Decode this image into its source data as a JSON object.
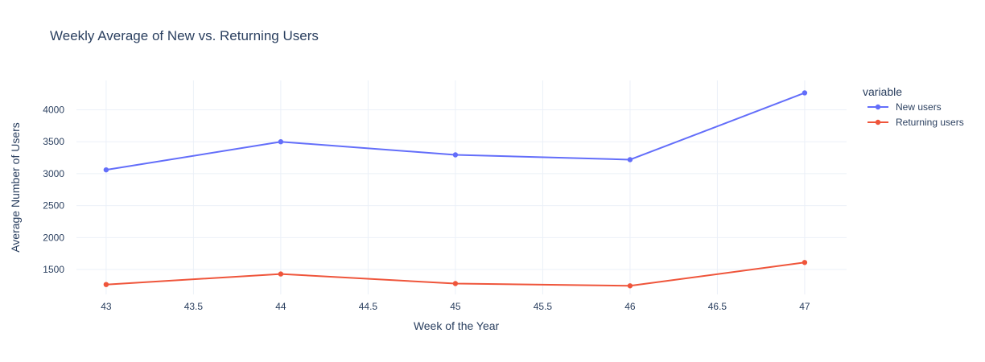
{
  "chart_data": {
    "type": "line",
    "title": "Weekly Average of New vs. Returning Users",
    "xlabel": "Week of the Year",
    "ylabel": "Average Number of Users",
    "x": [
      43,
      44,
      45,
      46,
      47
    ],
    "x_ticks": [
      "43",
      "43.5",
      "44",
      "44.5",
      "45",
      "45.5",
      "46",
      "46.5",
      "47"
    ],
    "y_ticks": [
      "1500",
      "2000",
      "2500",
      "3000",
      "3500",
      "4000"
    ],
    "xlim": [
      42.83,
      47.24
    ],
    "ylim": [
      1110,
      4460
    ],
    "grid": true,
    "legend": {
      "title": "variable",
      "position": "top-right"
    },
    "series": [
      {
        "name": "New users",
        "color": "#636efa",
        "values": [
          3060,
          3500,
          3295,
          3220,
          4265
        ]
      },
      {
        "name": "Returning users",
        "color": "#ef553b",
        "values": [
          1265,
          1430,
          1280,
          1245,
          1610
        ]
      }
    ]
  }
}
